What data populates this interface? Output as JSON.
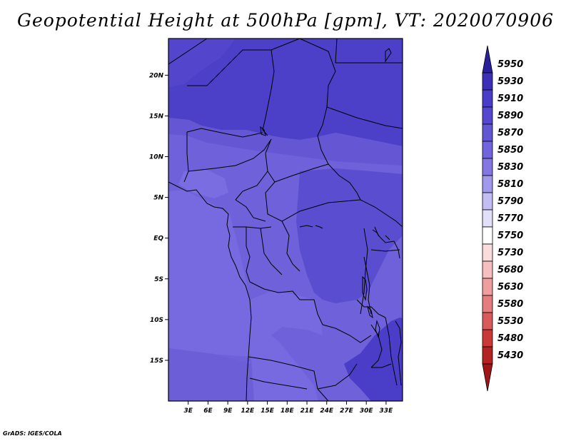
{
  "title": "Geopotential Height at 500hPa [gpm], VT: 2020070906",
  "footer": "GrADS: IGES/COLA",
  "chart_data": {
    "type": "heatmap",
    "title": "Geopotential Height at 500hPa [gpm], VT: 2020070906",
    "variable": "Geopotential Height",
    "units": "gpm",
    "level": "500hPa",
    "valid_time": "2020070906",
    "lon_range": [
      0,
      35.5
    ],
    "lat_range": [
      -20,
      24.5
    ],
    "lon_ticks": [
      "3E",
      "6E",
      "9E",
      "12E",
      "15E",
      "18E",
      "21E",
      "24E",
      "27E",
      "30E",
      "33E"
    ],
    "lon_values": [
      3,
      6,
      9,
      12,
      15,
      18,
      21,
      24,
      27,
      30,
      33
    ],
    "lat_ticks": [
      "20N",
      "15N",
      "10N",
      "5N",
      "EQ",
      "5S",
      "10S",
      "15S"
    ],
    "lat_values": [
      20,
      15,
      10,
      5,
      0,
      -5,
      -10,
      -15
    ],
    "colorbar_levels": [
      "5950",
      "5930",
      "5910",
      "5890",
      "5870",
      "5850",
      "5830",
      "5810",
      "5790",
      "5770",
      "5750",
      "5730",
      "5680",
      "5630",
      "5580",
      "5530",
      "5480",
      "5430"
    ],
    "colorbar_colors": [
      "#2a1f9c",
      "#3c30b6",
      "#4a3ec8",
      "#5547cf",
      "#6356d4",
      "#7264dc",
      "#8577e2",
      "#a199ec",
      "#c2bdf2",
      "#e2e0f8",
      "#ffffff",
      "#fbdcdc",
      "#f6bebe",
      "#ee9e9e",
      "#e47e7e",
      "#d85a5a",
      "#ca3838",
      "#b42222",
      "#9e1616"
    ],
    "field_fill_levels": [
      5910,
      5890,
      5870,
      5850
    ]
  }
}
